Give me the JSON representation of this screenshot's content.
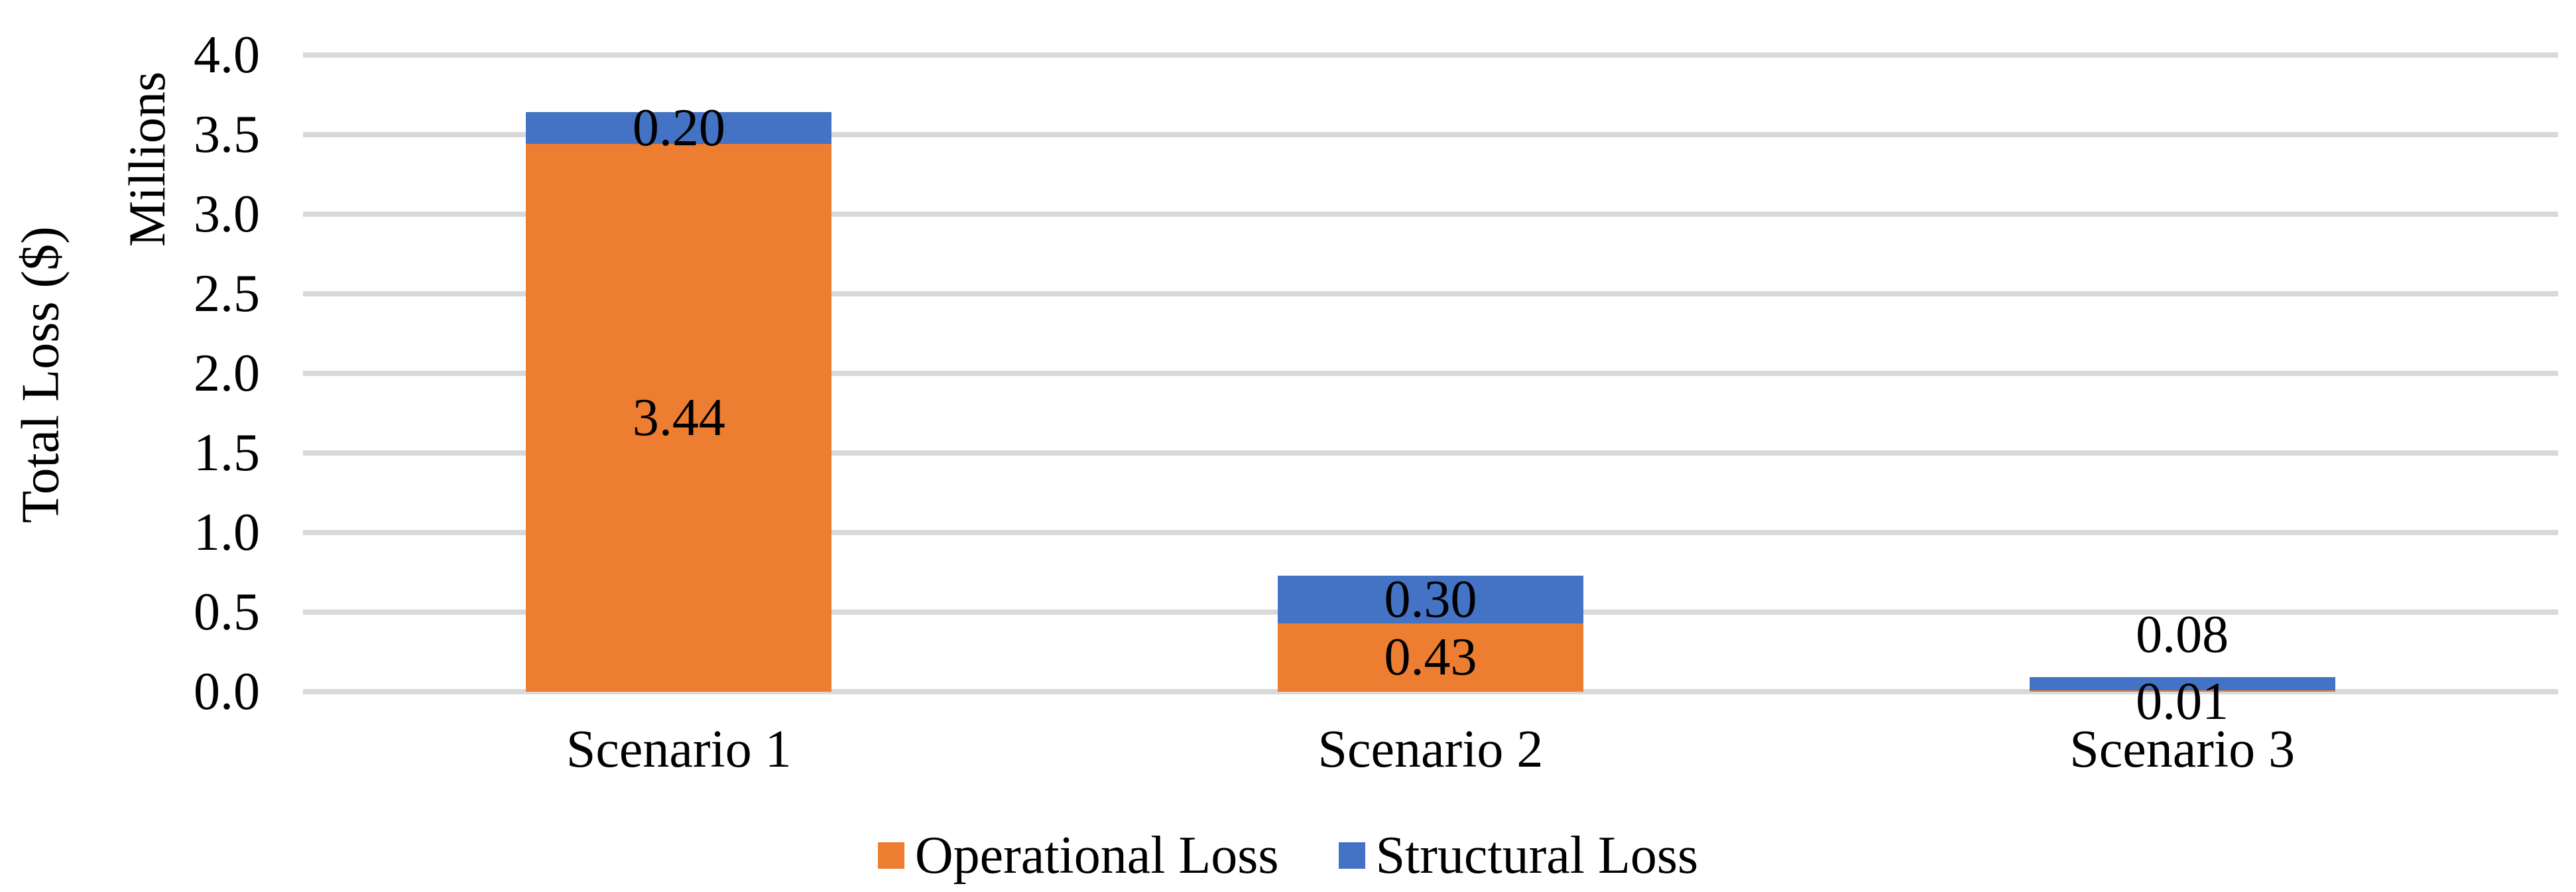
{
  "chart_data": {
    "type": "bar",
    "stacked": true,
    "title": "",
    "xlabel": "",
    "ylabel": "Total Loss ($)",
    "y_units_label": "Millions",
    "categories": [
      "Scenario 1",
      "Scenario 2",
      "Scenario 3"
    ],
    "series": [
      {
        "name": "Operational Loss",
        "color": "#ED7D31",
        "values": [
          3.44,
          0.43,
          0.01
        ],
        "labels": [
          "3.44",
          "0.43",
          "0.01"
        ],
        "label_placement": [
          "center",
          "center",
          "below"
        ]
      },
      {
        "name": "Structural Loss",
        "color": "#4472C4",
        "values": [
          0.2,
          0.3,
          0.08
        ],
        "labels": [
          "0.20",
          "0.30",
          "0.08"
        ],
        "label_placement": [
          "center",
          "center",
          "above"
        ]
      }
    ],
    "ylim": [
      0,
      4.0
    ],
    "ytick_step": 0.5,
    "yticks": [
      "0.0",
      "0.5",
      "1.0",
      "1.5",
      "2.0",
      "2.5",
      "3.0",
      "3.5",
      "4.0"
    ],
    "grid": true,
    "gridline_color": "#D9D9D9",
    "legend_position": "bottom",
    "text_color": "#000000",
    "background": "#FFFFFF"
  }
}
